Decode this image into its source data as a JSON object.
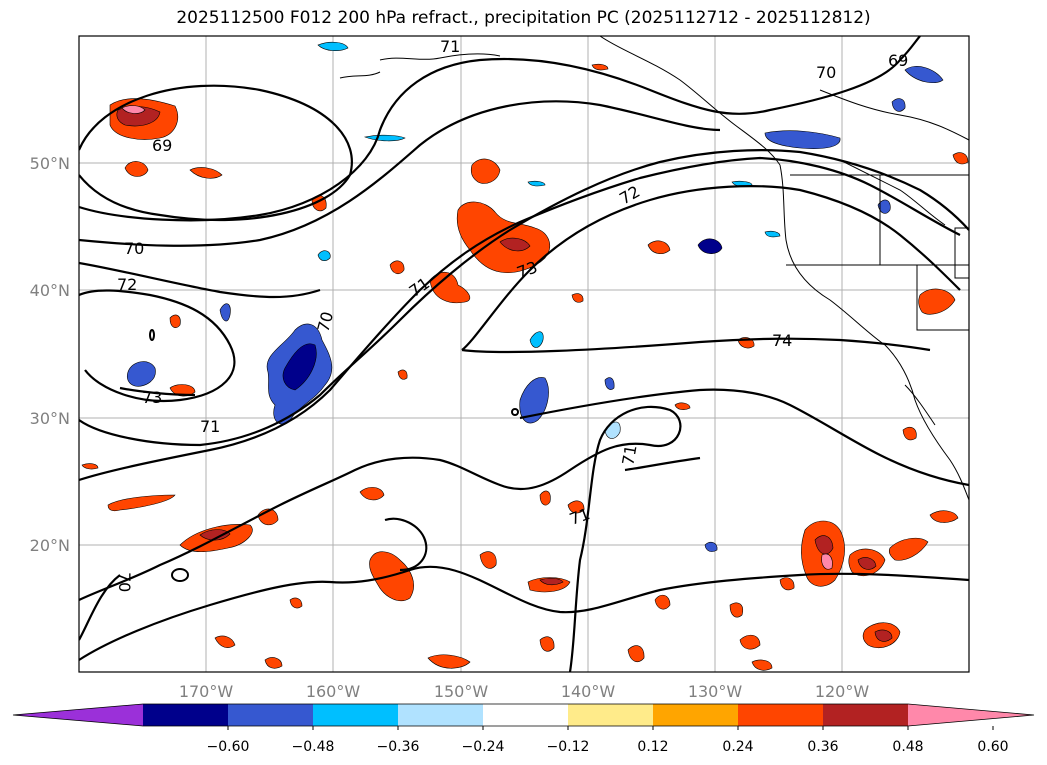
{
  "title": "2025112500 F012 200 hPa refract., precipitation PC (2025112712 - 2025112812)",
  "map": {
    "lat_labels": [
      "50°N",
      "40°N",
      "30°N",
      "20°N"
    ],
    "lon_labels": [
      "170°W",
      "160°W",
      "150°W",
      "140°W",
      "130°W",
      "120°W"
    ],
    "grid": true
  },
  "contour_labels": [
    "69",
    "69",
    "70",
    "70",
    "70",
    "70",
    "71",
    "71",
    "71",
    "71",
    "71",
    "72",
    "72",
    "73",
    "73",
    "74"
  ],
  "colorbar": {
    "ticks": [
      "−0.60",
      "−0.48",
      "−0.36",
      "−0.24",
      "−0.12",
      "0.12",
      "0.24",
      "0.36",
      "0.48",
      "0.60"
    ],
    "colors": [
      "#9b30d9",
      "#00008b",
      "#3658d0",
      "#00bfff",
      "#b0e2ff",
      "#ffffff",
      "#ffeb8a",
      "#ffa500",
      "#ff4500",
      "#b22222",
      "#ff88aa"
    ],
    "extend": "both"
  }
}
